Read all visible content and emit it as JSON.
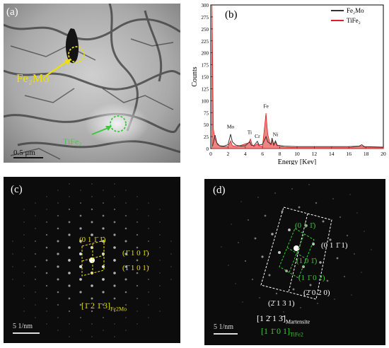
{
  "panels": {
    "a": {
      "label": "(a)",
      "phase_label": "Fe₂Mo",
      "phase_label_green": "TiFe₂",
      "scalebar": "0.5 μm"
    },
    "b": {
      "label": "(b)"
    },
    "c": {
      "label": "(c)",
      "indices": [
        "(0 1 1̄ 1̄)",
        "(1̄ 1 0 1̄)",
        "(1̄ 1 0 1)"
      ],
      "zone_axis": "[1̄ 2 1̄ 3]",
      "zone_axis_sub": "Fe2Mo",
      "scalebar": "5 1/nm"
    },
    "d": {
      "label": "(d)",
      "indices_green": [
        "(0 1 1̄)",
        "(1 0 1̄)",
        "(1 1̄ 0 2)"
      ],
      "indices_white": [
        "(0 1 1̄ 1)",
        "(2̄ 0 2 0)",
        "(2̄ 1 3 1)"
      ],
      "zone_axis_white": "[1 2̄ 1 3̄]",
      "zone_axis_white_sub": "Martensite",
      "zone_axis_green": "[1 1̄ 0 1]",
      "zone_axis_green_sub": "TiFe2",
      "scalebar": "5 1/nm"
    }
  },
  "chart_data": {
    "type": "line",
    "xlabel": "Energy [Kev]",
    "ylabel": "Counts",
    "xlim": [
      0,
      20
    ],
    "ylim": [
      0,
      300
    ],
    "xticks": [
      0,
      2,
      4,
      6,
      8,
      10,
      12,
      14,
      16,
      18,
      20
    ],
    "yticks": [
      0,
      25,
      50,
      75,
      100,
      125,
      150,
      175,
      200,
      225,
      250,
      275,
      300
    ],
    "legend_position": "top-right",
    "series": [
      {
        "name": "Fe₂Mo",
        "color": "#333333",
        "points": [
          [
            0.2,
            5
          ],
          [
            0.5,
            28
          ],
          [
            0.7,
            12
          ],
          [
            1.0,
            6
          ],
          [
            1.5,
            5
          ],
          [
            2.0,
            8
          ],
          [
            2.3,
            30
          ],
          [
            2.5,
            14
          ],
          [
            2.9,
            7
          ],
          [
            3.5,
            5
          ],
          [
            4.0,
            6
          ],
          [
            4.5,
            14
          ],
          [
            4.7,
            7
          ],
          [
            5.0,
            6
          ],
          [
            5.4,
            15
          ],
          [
            5.6,
            7
          ],
          [
            6.0,
            9
          ],
          [
            6.4,
            25
          ],
          [
            6.6,
            14
          ],
          [
            7.0,
            9
          ],
          [
            7.1,
            22
          ],
          [
            7.3,
            8
          ],
          [
            7.5,
            16
          ],
          [
            7.7,
            7
          ],
          [
            8.5,
            5
          ],
          [
            10,
            4
          ],
          [
            12,
            4
          ],
          [
            14,
            4
          ],
          [
            16,
            4
          ],
          [
            17.2,
            5
          ],
          [
            17.5,
            8
          ],
          [
            17.8,
            4
          ],
          [
            20,
            3
          ]
        ]
      },
      {
        "name": "TiFe₂",
        "color": "#e02020",
        "points": [
          [
            0.15,
            300
          ],
          [
            0.3,
            40
          ],
          [
            0.5,
            20
          ],
          [
            0.8,
            8
          ],
          [
            1.2,
            4
          ],
          [
            2.0,
            4
          ],
          [
            2.3,
            16
          ],
          [
            2.5,
            6
          ],
          [
            3.0,
            4
          ],
          [
            4.4,
            12
          ],
          [
            4.6,
            20
          ],
          [
            4.8,
            8
          ],
          [
            5.0,
            4
          ],
          [
            5.4,
            10
          ],
          [
            5.6,
            5
          ],
          [
            6.0,
            5
          ],
          [
            6.4,
            74
          ],
          [
            6.6,
            30
          ],
          [
            6.9,
            8
          ],
          [
            7.1,
            18
          ],
          [
            7.3,
            6
          ],
          [
            7.5,
            14
          ],
          [
            7.7,
            5
          ],
          [
            8.5,
            3
          ],
          [
            10,
            2
          ],
          [
            12,
            2
          ],
          [
            14,
            2
          ],
          [
            16,
            2
          ],
          [
            17.5,
            5
          ],
          [
            18,
            2
          ],
          [
            20,
            2
          ]
        ]
      }
    ],
    "annotations": [
      {
        "text": "Mo",
        "x": 2.3,
        "y": 42
      },
      {
        "text": "Ti",
        "x": 4.5,
        "y": 30
      },
      {
        "text": "Cr",
        "x": 5.4,
        "y": 22
      },
      {
        "text": "Fe",
        "x": 6.4,
        "y": 85
      },
      {
        "text": "Ni",
        "x": 7.5,
        "y": 26
      }
    ]
  }
}
